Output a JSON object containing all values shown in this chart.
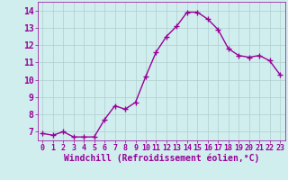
{
  "x": [
    0,
    1,
    2,
    3,
    4,
    5,
    6,
    7,
    8,
    9,
    10,
    11,
    12,
    13,
    14,
    15,
    16,
    17,
    18,
    19,
    20,
    21,
    22,
    23
  ],
  "y": [
    6.9,
    6.8,
    7.0,
    6.7,
    6.7,
    6.7,
    7.7,
    8.5,
    8.3,
    8.7,
    10.2,
    11.6,
    12.5,
    13.1,
    13.9,
    13.9,
    13.5,
    12.9,
    11.8,
    11.4,
    11.3,
    11.4,
    11.1,
    10.3
  ],
  "line_color": "#990099",
  "marker": "+",
  "marker_size": 4,
  "bg_color": "#d0eeee",
  "grid_color": "#b0cece",
  "xlabel": "Windchill (Refroidissement éolien,°C)",
  "xlabel_color": "#990099",
  "tick_color": "#990099",
  "label_color": "#990099",
  "ylim": [
    6.5,
    14.5
  ],
  "xlim": [
    -0.5,
    23.5
  ],
  "yticks": [
    7,
    8,
    9,
    10,
    11,
    12,
    13,
    14
  ],
  "xticks": [
    0,
    1,
    2,
    3,
    4,
    5,
    6,
    7,
    8,
    9,
    10,
    11,
    12,
    13,
    14,
    15,
    16,
    17,
    18,
    19,
    20,
    21,
    22,
    23
  ],
  "xlabel_fontsize": 7,
  "tick_fontsize_x": 6,
  "tick_fontsize_y": 7,
  "linewidth": 1.0,
  "spine_color": "#990099"
}
